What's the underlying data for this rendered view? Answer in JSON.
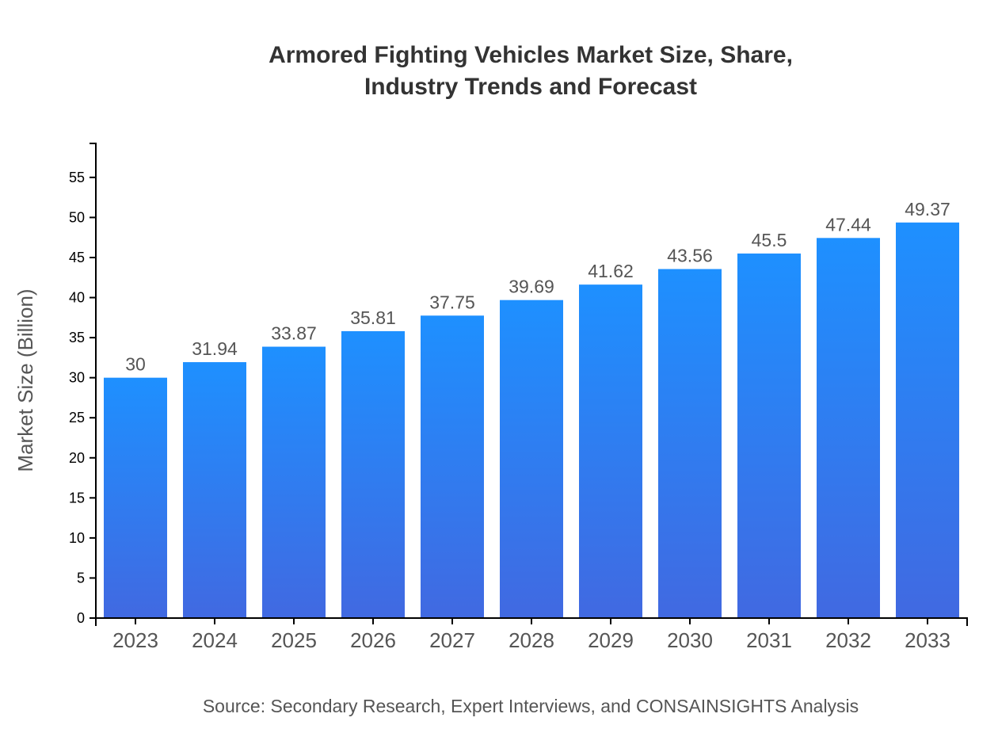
{
  "chart_data": {
    "type": "bar",
    "title_lines": [
      "Armored Fighting Vehicles Market Size, Share,",
      "Industry Trends and Forecast"
    ],
    "categories": [
      "2023",
      "2024",
      "2025",
      "2026",
      "2027",
      "2028",
      "2029",
      "2030",
      "2031",
      "2032",
      "2033"
    ],
    "values": [
      30,
      31.94,
      33.87,
      35.81,
      37.75,
      39.69,
      41.62,
      43.56,
      45.5,
      47.44,
      49.37
    ],
    "data_labels": [
      "30",
      "31.94",
      "33.87",
      "35.81",
      "37.75",
      "39.69",
      "41.62",
      "43.56",
      "45.5",
      "47.44",
      "49.37"
    ],
    "xlabel": "",
    "ylabel": "Market Size (Billion)",
    "ylim": [
      0,
      59.24
    ],
    "yticks": [
      0,
      5,
      10,
      15,
      20,
      25,
      30,
      35,
      40,
      45,
      50,
      55
    ],
    "grid": false,
    "legend": "none",
    "colors": {
      "bar_top": "#1E90FF",
      "bar_bottom": "#4169E1",
      "text": "#555555",
      "axis": "#000000"
    }
  },
  "source": "Source: Secondary Research, Expert Interviews, and CONSAINSIGHTS Analysis"
}
